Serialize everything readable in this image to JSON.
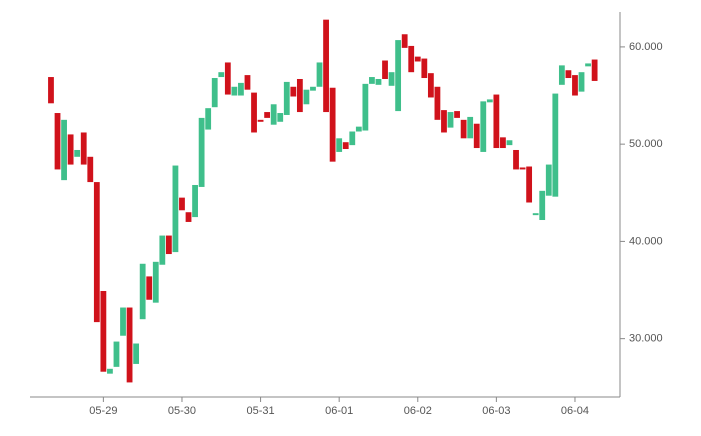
{
  "chart_data": {
    "type": "candlestick",
    "categories": [
      null,
      null,
      null,
      null,
      null,
      null,
      null,
      null,
      "05-29",
      null,
      null,
      null,
      null,
      null,
      null,
      null,
      null,
      null,
      null,
      null,
      "05-30",
      null,
      null,
      null,
      null,
      null,
      null,
      null,
      null,
      null,
      null,
      null,
      "05-31",
      null,
      null,
      null,
      null,
      null,
      null,
      null,
      null,
      null,
      null,
      null,
      "06-01",
      null,
      null,
      null,
      null,
      null,
      null,
      null,
      null,
      null,
      null,
      null,
      "06-02",
      null,
      null,
      null,
      null,
      null,
      null,
      null,
      null,
      null,
      null,
      null,
      "06-03",
      null,
      null,
      null,
      null,
      null,
      null,
      null,
      null,
      null,
      null,
      null,
      "06-04",
      null,
      null,
      null
    ],
    "open": [
      56900,
      53200,
      46300,
      51000,
      48700,
      51200,
      48700,
      46100,
      34900,
      26400,
      27100,
      30300,
      33200,
      27400,
      32000,
      36400,
      33700,
      37600,
      40600,
      38900,
      44500,
      43000,
      42500,
      45600,
      51500,
      53800,
      56900,
      58400,
      55000,
      55000,
      57100,
      55300,
      52500,
      53300,
      52000,
      52300,
      53000,
      55900,
      56700,
      54100,
      55500,
      55900,
      62800,
      55800,
      49200,
      50200,
      49900,
      51300,
      51400,
      56200,
      56100,
      58600,
      56000,
      53400,
      61300,
      60100,
      59000,
      58800,
      57300,
      55900,
      53500,
      51700,
      53400,
      52500,
      50600,
      52100,
      49200,
      54300,
      55100,
      50700,
      49900,
      49400,
      47600,
      47700,
      42700,
      42200,
      44700,
      44600,
      56100,
      57600,
      57100,
      55400,
      58000,
      58700
    ],
    "close": [
      54200,
      47400,
      52500,
      47900,
      49400,
      47900,
      46100,
      31700,
      26600,
      26900,
      29700,
      33200,
      25500,
      29500,
      37700,
      34000,
      37900,
      40600,
      38700,
      47800,
      43200,
      42000,
      45800,
      52700,
      53700,
      56800,
      57400,
      55100,
      55900,
      56300,
      55600,
      51200,
      52300,
      52700,
      54100,
      53200,
      56400,
      54900,
      53300,
      55600,
      55900,
      58400,
      53300,
      48200,
      50600,
      49500,
      51300,
      51800,
      56200,
      56900,
      56700,
      56700,
      57400,
      60700,
      59900,
      57400,
      58500,
      56800,
      54800,
      52500,
      51200,
      53300,
      52700,
      50600,
      52800,
      49600,
      54400,
      54600,
      49600,
      49600,
      50400,
      47400,
      47400,
      44000,
      42900,
      45200,
      47900,
      55200,
      58100,
      56800,
      55000,
      57400,
      58300,
      56500
    ],
    "up_color": "#3fbf8b",
    "down_color": "#d0121b",
    "ylim": [
      24000,
      64000
    ],
    "yticks": [
      {
        "value": 30000,
        "label": "30.000"
      },
      {
        "value": 40000,
        "label": "40.000"
      },
      {
        "value": 50000,
        "label": "50.000"
      },
      {
        "value": 60000,
        "label": "60.000"
      }
    ]
  }
}
